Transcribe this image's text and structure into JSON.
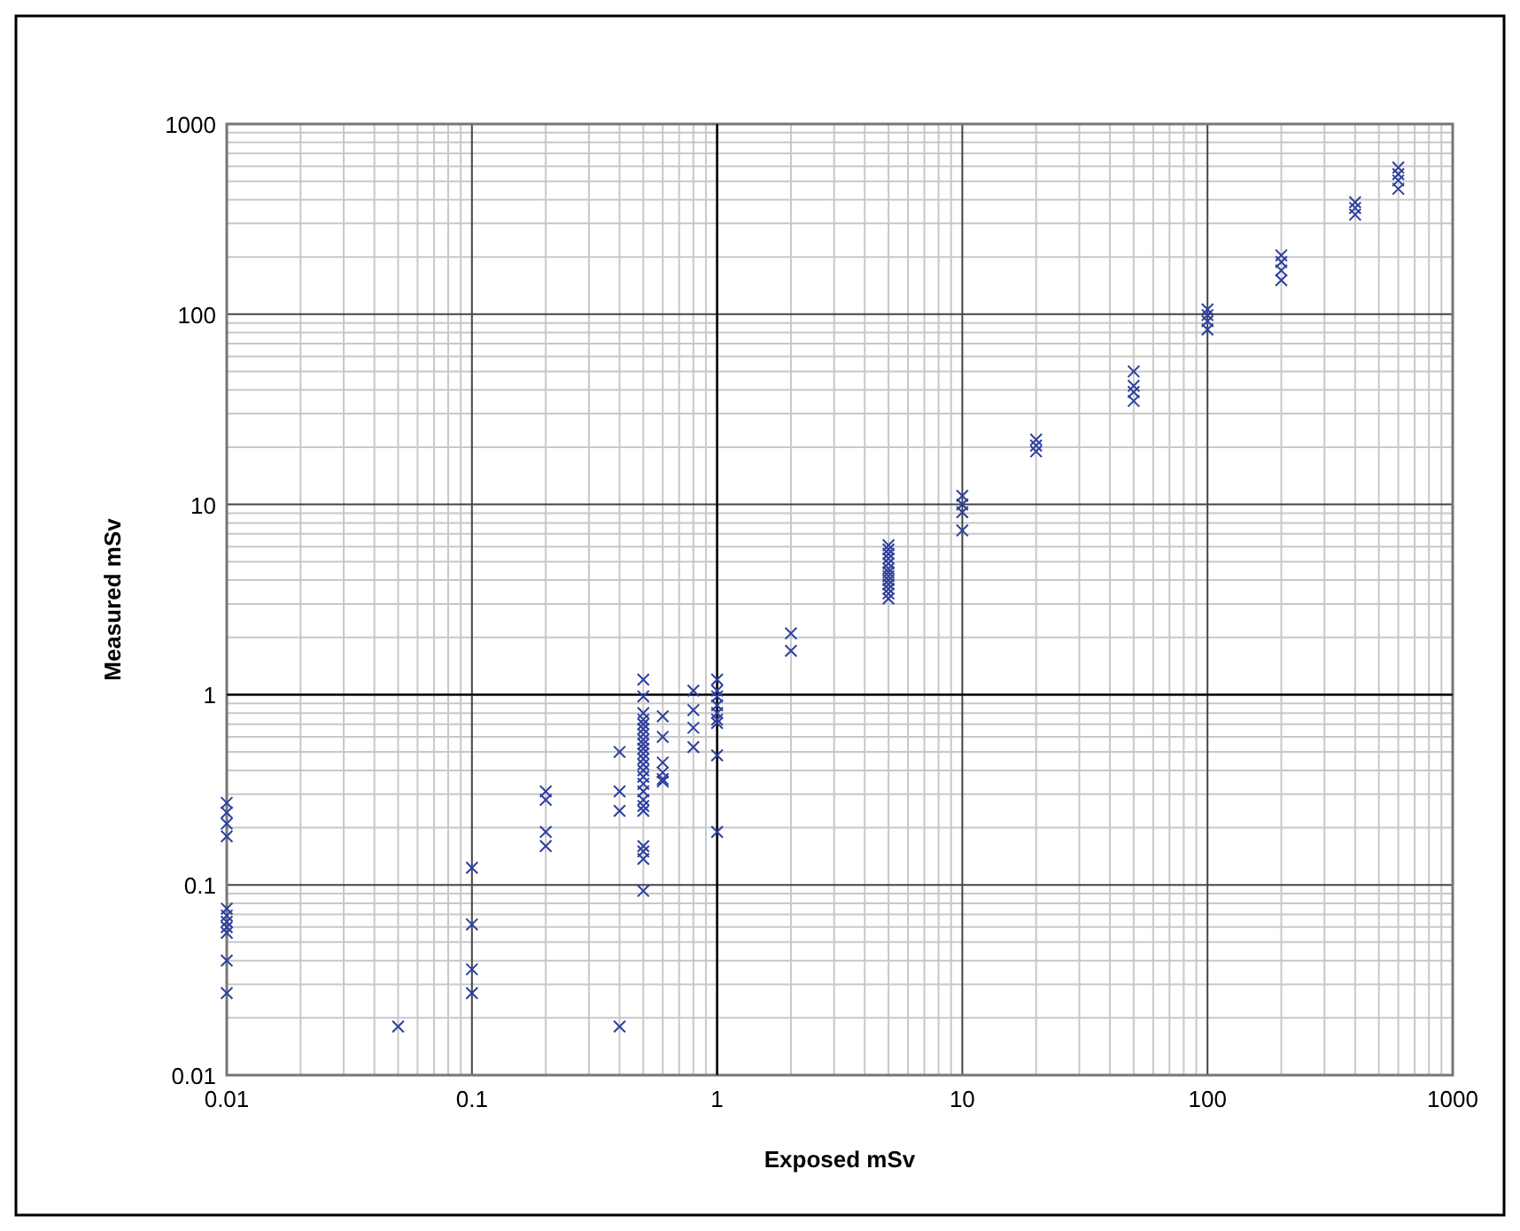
{
  "chart_data": {
    "type": "scatter",
    "xlabel": "Exposed mSv",
    "ylabel": "Measured mSv",
    "log": "xy",
    "grid": true,
    "marker": "cross",
    "xlim": [
      0.01,
      1000
    ],
    "ylim": [
      0.01,
      1000
    ],
    "xticks": [
      0.01,
      0.1,
      1,
      10,
      100,
      1000
    ],
    "yticks": [
      0.01,
      0.1,
      1,
      10,
      100,
      1000
    ],
    "series": [
      {
        "color": "#2e3f9e",
        "x": [
          0.01,
          0.01,
          0.01,
          0.01,
          0.01,
          0.01,
          0.01,
          0.01,
          0.01,
          0.01,
          0.01,
          0.05,
          0.1,
          0.1,
          0.1,
          0.1,
          0.2,
          0.2,
          0.2,
          0.2,
          0.4,
          0.4,
          0.4,
          0.4,
          0.5,
          0.5,
          0.5,
          0.5,
          0.5,
          0.5,
          0.5,
          0.5,
          0.5,
          0.5,
          0.5,
          0.5,
          0.5,
          0.5,
          0.5,
          0.5,
          0.5,
          0.5,
          0.5,
          0.5,
          0.5,
          0.5,
          0.5,
          0.5,
          0.6,
          0.6,
          0.6,
          0.6,
          0.6,
          0.6,
          0.8,
          0.8,
          0.8,
          0.8,
          1,
          1,
          1,
          1,
          1,
          1,
          1,
          1,
          1,
          2,
          2,
          5,
          5,
          5,
          5,
          5,
          5,
          5,
          5,
          5,
          5,
          5,
          5,
          5,
          10,
          10,
          10,
          10,
          20,
          20,
          20,
          50,
          50,
          50,
          50,
          100,
          100,
          100,
          100,
          200,
          200,
          200,
          200,
          400,
          400,
          400,
          600,
          600,
          600,
          600
        ],
        "values": [
          0.27,
          0.24,
          0.21,
          0.18,
          0.075,
          0.069,
          0.064,
          0.06,
          0.056,
          0.04,
          0.027,
          0.018,
          0.123,
          0.062,
          0.036,
          0.027,
          0.31,
          0.28,
          0.19,
          0.16,
          0.5,
          0.31,
          0.245,
          0.018,
          1.2,
          0.98,
          0.8,
          0.74,
          0.7,
          0.66,
          0.62,
          0.58,
          0.55,
          0.52,
          0.49,
          0.46,
          0.43,
          0.4,
          0.37,
          0.34,
          0.31,
          0.28,
          0.26,
          0.245,
          0.16,
          0.15,
          0.137,
          0.093,
          0.77,
          0.6,
          0.44,
          0.39,
          0.36,
          0.35,
          1.05,
          0.83,
          0.67,
          0.53,
          1.2,
          1.05,
          0.98,
          0.88,
          0.8,
          0.74,
          0.71,
          0.48,
          0.19,
          2.1,
          1.7,
          6.1,
          5.8,
          5.5,
          5.2,
          4.9,
          4.6,
          4.4,
          4.2,
          4.0,
          3.8,
          3.6,
          3.4,
          3.2,
          11.1,
          10,
          9.1,
          7.3,
          21.9,
          20.4,
          19,
          50,
          42,
          39,
          35,
          106,
          99,
          92,
          83,
          204,
          188,
          170,
          151,
          388,
          362,
          334,
          590,
          545,
          505,
          456
        ]
      }
    ]
  }
}
